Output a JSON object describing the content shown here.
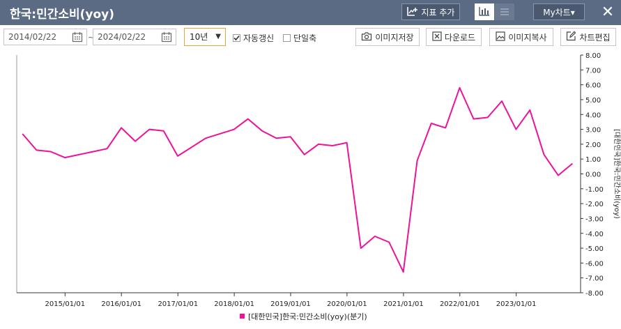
{
  "header": {
    "title": "한국:민간소비(yoy)",
    "add_indicator_label": "지표 추가",
    "my_chart_label": "My차트▾",
    "close_symbol": "✕"
  },
  "toolbar": {
    "start_date": "2014/02/22",
    "end_date": "2024/02/22",
    "range_separator": "~",
    "period": "10년",
    "auto_refresh_label": "자동갱신",
    "auto_refresh_checked": true,
    "single_axis_label": "단일축",
    "single_axis_checked": false,
    "save_image_label": "이미지저장",
    "download_label": "다운로드",
    "copy_image_label": "이미지복사",
    "edit_chart_label": "차트편집"
  },
  "chart_data": {
    "type": "line",
    "x_tick_labels": [
      "2015/01/01",
      "2016/01/01",
      "2017/01/01",
      "2018/01/01",
      "2019/01/01",
      "2020/01/01",
      "2021/01/01",
      "2022/01/01",
      "2023/01/01"
    ],
    "y_tick_labels": [
      "8.00",
      "7.00",
      "6.00",
      "5.00",
      "4.00",
      "3.00",
      "2.00",
      "1.00",
      "0.00",
      "-1.00",
      "-2.00",
      "-3.00",
      "-4.00",
      "-5.00",
      "-6.00",
      "-7.00",
      "-8.00"
    ],
    "ylim": [
      -8,
      8
    ],
    "ylabel": "[대한민국]한국:민간소비(yoy)",
    "grid": false,
    "legend_position": "bottom-center",
    "series": [
      {
        "name": "[대한민국]한국:민간소비(yoy)(분기)",
        "color": "#ee1199",
        "x": [
          "2014-03-31",
          "2014-06-30",
          "2014-09-30",
          "2014-12-31",
          "2015-09-30",
          "2015-12-31",
          "2016-03-31",
          "2016-06-30",
          "2016-09-30",
          "2016-12-31",
          "2017-06-30",
          "2017-12-31",
          "2018-03-31",
          "2018-06-30",
          "2018-09-30",
          "2018-12-31",
          "2019-03-31",
          "2019-06-30",
          "2019-09-30",
          "2019-12-31",
          "2020-03-31",
          "2020-06-30",
          "2020-09-30",
          "2020-12-31",
          "2021-03-31",
          "2021-06-30",
          "2021-09-30",
          "2021-12-31",
          "2022-03-31",
          "2022-06-30",
          "2022-09-30",
          "2022-12-31",
          "2023-03-31",
          "2023-06-30",
          "2023-09-30",
          "2023-12-31"
        ],
        "values": [
          2.7,
          1.6,
          1.5,
          1.1,
          1.7,
          3.1,
          2.2,
          3.0,
          2.9,
          1.2,
          2.4,
          3.0,
          3.7,
          2.9,
          2.4,
          2.5,
          1.3,
          2.0,
          1.9,
          2.1,
          -5.0,
          -4.2,
          -4.6,
          -6.6,
          0.9,
          3.4,
          3.1,
          5.8,
          3.7,
          3.8,
          4.9,
          3.0,
          4.3,
          1.3,
          -0.1,
          0.7
        ]
      }
    ]
  }
}
